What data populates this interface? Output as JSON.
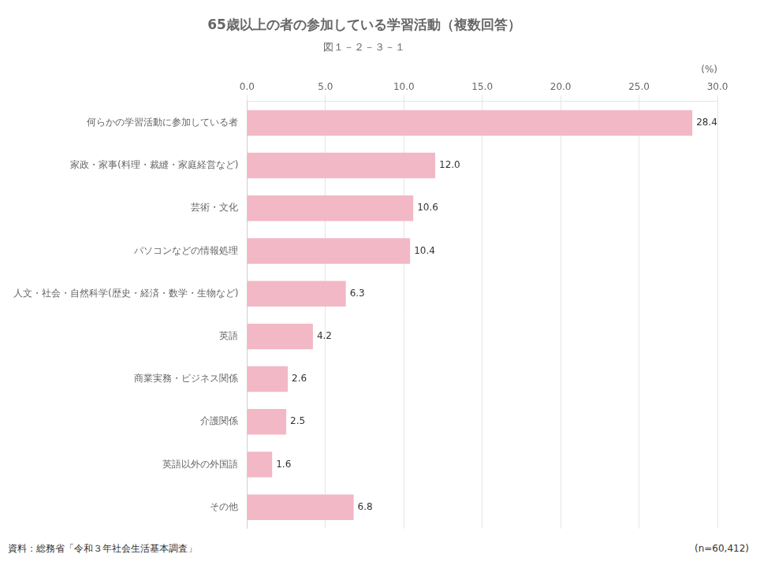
{
  "chart_data": {
    "type": "bar",
    "orientation": "horizontal",
    "title": "65歳以上の者の参加している学習活動（複数回答）",
    "subtitle": "図１－２－３－１",
    "xlabel": "(%)",
    "categories": [
      "何らかの学習活動に参加している者",
      "家政・家事(料理・裁縫・家庭経営など)",
      "芸術・文化",
      "パソコンなどの情報処理",
      "人文・社会・自然科学(歴史・経済・数学・生物など)",
      "英語",
      "商業実務・ビジネス関係",
      "介護関係",
      "英語以外の外国語",
      "その他"
    ],
    "values": [
      28.4,
      12.0,
      10.6,
      10.4,
      6.3,
      4.2,
      2.6,
      2.5,
      1.6,
      6.8
    ],
    "value_labels": [
      "28.4",
      "12.0",
      "10.6",
      "10.4",
      "6.3",
      "4.2",
      "2.6",
      "2.5",
      "1.6",
      "6.8"
    ],
    "data_labels": true,
    "color": "#f2b8c6",
    "xlim": [
      0,
      30.0
    ],
    "xticks": [
      {
        "value": 0,
        "label": "0.0"
      },
      {
        "value": 5,
        "label": "5.0"
      },
      {
        "value": 10,
        "label": "10.0"
      },
      {
        "value": 15,
        "label": "15.0"
      },
      {
        "value": 20,
        "label": "20.0"
      },
      {
        "value": 25,
        "label": "25.0"
      },
      {
        "value": 30,
        "label": "30.0"
      }
    ],
    "grid": true,
    "annotations": [
      "資料：総務省「令和３年社会生活基本調査」",
      "(n=60,412)"
    ]
  }
}
